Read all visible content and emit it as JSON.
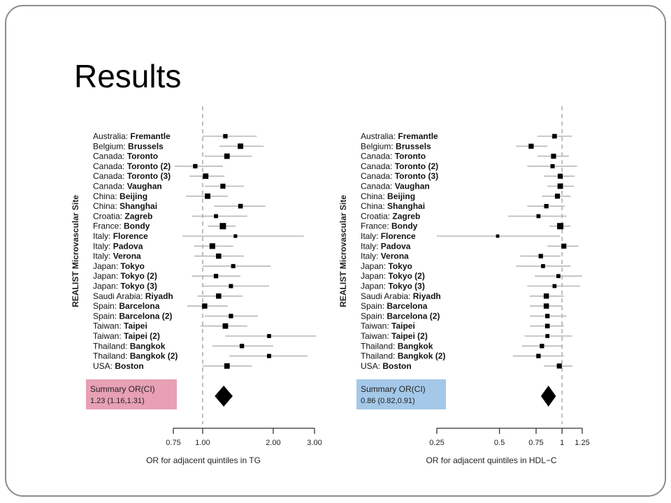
{
  "slide": {
    "title": "Results"
  },
  "chart_data": [
    {
      "type": "forest",
      "ylabel": "REALIST Microvascular Site",
      "xlabel": "OR for adjacent quintiles in TG",
      "xscale": "log",
      "xlim": [
        0.75,
        3.0
      ],
      "xticks": [
        "0.75",
        "1.00",
        "2.00",
        "3.00"
      ],
      "reference_line": 1.0,
      "summary_label": "Summary OR(CI)",
      "summary_value": "1.23 (1.16,1.31)",
      "summary": {
        "or": 1.23,
        "lo": 1.16,
        "hi": 1.31
      },
      "summary_color": "#e8a0b4",
      "studies": [
        {
          "country": "Australia",
          "city": "Fremantle",
          "or": 1.25,
          "lo": 1.0,
          "hi": 1.7,
          "weight": 0.55
        },
        {
          "country": "Belgium",
          "city": "Brussels",
          "or": 1.45,
          "lo": 1.18,
          "hi": 1.82,
          "weight": 0.8
        },
        {
          "country": "Canada",
          "city": "Toronto",
          "or": 1.27,
          "lo": 1.02,
          "hi": 1.62,
          "weight": 0.8
        },
        {
          "country": "Canada",
          "city": "Toronto (2)",
          "or": 0.93,
          "lo": 0.76,
          "hi": 1.22,
          "weight": 0.55
        },
        {
          "country": "Canada",
          "city": "Toronto (3)",
          "or": 1.03,
          "lo": 0.88,
          "hi": 1.24,
          "weight": 0.8
        },
        {
          "country": "Canada",
          "city": "Vaughan",
          "or": 1.22,
          "lo": 1.02,
          "hi": 1.5,
          "weight": 0.7
        },
        {
          "country": "China",
          "city": "Beijing",
          "or": 1.05,
          "lo": 0.85,
          "hi": 1.28,
          "weight": 0.8
        },
        {
          "country": "China",
          "city": "Shanghai",
          "or": 1.45,
          "lo": 1.12,
          "hi": 1.85,
          "weight": 0.6
        },
        {
          "country": "Croatia",
          "city": "Zagreb",
          "or": 1.14,
          "lo": 0.9,
          "hi": 1.55,
          "weight": 0.45
        },
        {
          "country": "France",
          "city": "Bondy",
          "or": 1.22,
          "lo": 1.05,
          "hi": 1.38,
          "weight": 1.0
        },
        {
          "country": "Italy",
          "city": "Florence",
          "or": 1.38,
          "lo": 0.82,
          "hi": 2.7,
          "weight": 0.35
        },
        {
          "country": "Italy",
          "city": "Padova",
          "or": 1.1,
          "lo": 0.92,
          "hi": 1.35,
          "weight": 0.85
        },
        {
          "country": "Italy",
          "city": "Verona",
          "or": 1.17,
          "lo": 0.92,
          "hi": 1.5,
          "weight": 0.75
        },
        {
          "country": "Japan",
          "city": "Tokyo",
          "or": 1.35,
          "lo": 1.0,
          "hi": 1.95,
          "weight": 0.5
        },
        {
          "country": "Japan",
          "city": "Tokyo (2)",
          "or": 1.14,
          "lo": 0.9,
          "hi": 1.45,
          "weight": 0.55
        },
        {
          "country": "Japan",
          "city": "Tokyo (3)",
          "or": 1.32,
          "lo": 1.0,
          "hi": 1.92,
          "weight": 0.5
        },
        {
          "country": "Saudi Arabia",
          "city": "Riyadh",
          "or": 1.17,
          "lo": 0.95,
          "hi": 1.48,
          "weight": 0.75
        },
        {
          "country": "Spain",
          "city": "Barcelona",
          "or": 1.02,
          "lo": 0.86,
          "hi": 1.28,
          "weight": 0.75
        },
        {
          "country": "Spain",
          "city": "Barcelona (2)",
          "or": 1.32,
          "lo": 1.02,
          "hi": 1.72,
          "weight": 0.55
        },
        {
          "country": "Taiwan",
          "city": "Taipei",
          "or": 1.25,
          "lo": 0.98,
          "hi": 1.55,
          "weight": 0.8
        },
        {
          "country": "Taiwan",
          "city": "Taipei (2)",
          "or": 1.92,
          "lo": 1.25,
          "hi": 3.05,
          "weight": 0.45
        },
        {
          "country": "Thailand",
          "city": "Bangkok",
          "or": 1.47,
          "lo": 1.1,
          "hi": 2.0,
          "weight": 0.55
        },
        {
          "country": "Thailand",
          "city": "Bangkok (2)",
          "or": 1.92,
          "lo": 1.3,
          "hi": 2.8,
          "weight": 0.5
        },
        {
          "country": "USA",
          "city": "Boston",
          "or": 1.27,
          "lo": 1.0,
          "hi": 1.62,
          "weight": 0.8
        }
      ]
    },
    {
      "type": "forest",
      "ylabel": "REALIST Microvascular Site",
      "xlabel": "OR for adjacent quintiles in HDL−C",
      "xscale": "log",
      "xlim": [
        0.25,
        1.25
      ],
      "xticks": [
        "0.25",
        "0.5",
        "0.75",
        "1",
        "1.25"
      ],
      "reference_line": 1.0,
      "summary_label": "Summary OR(CI)",
      "summary_value": "0.86 (0.82,0.91)",
      "summary": {
        "or": 0.86,
        "lo": 0.82,
        "hi": 0.91
      },
      "summary_color": "#a4c8e8",
      "studies": [
        {
          "country": "Australia",
          "city": "Fremantle",
          "or": 0.92,
          "lo": 0.76,
          "hi": 1.12,
          "weight": 0.6
        },
        {
          "country": "Belgium",
          "city": "Brussels",
          "or": 0.71,
          "lo": 0.6,
          "hi": 0.85,
          "weight": 0.7
        },
        {
          "country": "Canada",
          "city": "Toronto",
          "or": 0.91,
          "lo": 0.76,
          "hi": 1.08,
          "weight": 0.7
        },
        {
          "country": "Canada",
          "city": "Toronto (2)",
          "or": 0.9,
          "lo": 0.68,
          "hi": 1.18,
          "weight": 0.5
        },
        {
          "country": "Canada",
          "city": "Toronto (3)",
          "or": 0.98,
          "lo": 0.82,
          "hi": 1.15,
          "weight": 0.7
        },
        {
          "country": "Canada",
          "city": "Vaughan",
          "or": 0.98,
          "lo": 0.85,
          "hi": 1.14,
          "weight": 0.8
        },
        {
          "country": "China",
          "city": "Beijing",
          "or": 0.95,
          "lo": 0.8,
          "hi": 1.1,
          "weight": 0.7
        },
        {
          "country": "China",
          "city": "Shanghai",
          "or": 0.84,
          "lo": 0.68,
          "hi": 1.03,
          "weight": 0.55
        },
        {
          "country": "Croatia",
          "city": "Zagreb",
          "or": 0.77,
          "lo": 0.55,
          "hi": 1.05,
          "weight": 0.45
        },
        {
          "country": "France",
          "city": "Bondy",
          "or": 0.98,
          "lo": 0.87,
          "hi": 1.1,
          "weight": 1.0
        },
        {
          "country": "Italy",
          "city": "Florence",
          "or": 0.49,
          "lo": 0.25,
          "hi": 0.98,
          "weight": 0.3
        },
        {
          "country": "Italy",
          "city": "Padova",
          "or": 1.02,
          "lo": 0.85,
          "hi": 1.2,
          "weight": 0.7
        },
        {
          "country": "Italy",
          "city": "Verona",
          "or": 0.79,
          "lo": 0.63,
          "hi": 0.98,
          "weight": 0.55
        },
        {
          "country": "Japan",
          "city": "Tokyo",
          "or": 0.81,
          "lo": 0.6,
          "hi": 1.1,
          "weight": 0.45
        },
        {
          "country": "Japan",
          "city": "Tokyo (2)",
          "or": 0.96,
          "lo": 0.74,
          "hi": 1.25,
          "weight": 0.45
        },
        {
          "country": "Japan",
          "city": "Tokyo (3)",
          "or": 0.92,
          "lo": 0.68,
          "hi": 1.22,
          "weight": 0.45
        },
        {
          "country": "Saudi Arabia",
          "city": "Riyadh",
          "or": 0.84,
          "lo": 0.7,
          "hi": 1.02,
          "weight": 0.75
        },
        {
          "country": "Spain",
          "city": "Barcelona",
          "or": 0.84,
          "lo": 0.7,
          "hi": 1.0,
          "weight": 0.75
        },
        {
          "country": "Spain",
          "city": "Barcelona (2)",
          "or": 0.85,
          "lo": 0.7,
          "hi": 1.05,
          "weight": 0.55
        },
        {
          "country": "Taiwan",
          "city": "Taipei",
          "or": 0.85,
          "lo": 0.7,
          "hi": 1.02,
          "weight": 0.6
        },
        {
          "country": "Taiwan",
          "city": "Taipei (2)",
          "or": 0.85,
          "lo": 0.66,
          "hi": 1.12,
          "weight": 0.45
        },
        {
          "country": "Thailand",
          "city": "Bangkok",
          "or": 0.8,
          "lo": 0.64,
          "hi": 1.0,
          "weight": 0.55
        },
        {
          "country": "Thailand",
          "city": "Bangkok (2)",
          "or": 0.77,
          "lo": 0.58,
          "hi": 1.02,
          "weight": 0.55
        },
        {
          "country": "USA",
          "city": "Boston",
          "or": 0.97,
          "lo": 0.82,
          "hi": 1.12,
          "weight": 0.7
        }
      ]
    }
  ]
}
